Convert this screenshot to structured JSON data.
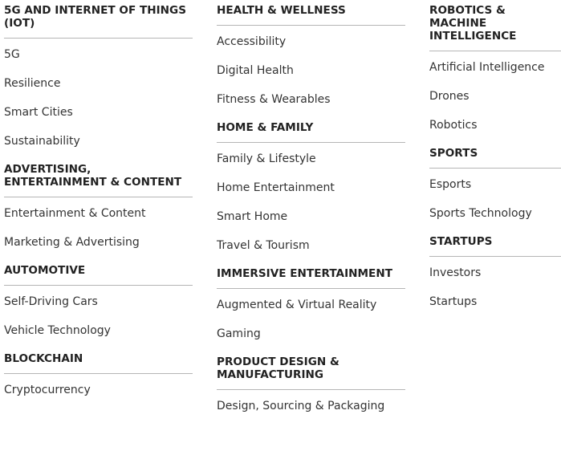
{
  "columns": [
    {
      "categories": [
        {
          "heading": "5G AND INTERNET OF THINGS (IOT)",
          "items": [
            "5G",
            "Resilience",
            "Smart Cities",
            "Sustainability"
          ]
        },
        {
          "heading": "ADVERTISING, ENTERTAINMENT & CONTENT",
          "items": [
            "Entertainment & Content",
            "Marketing & Advertising"
          ]
        },
        {
          "heading": "AUTOMOTIVE",
          "items": [
            "Self-Driving Cars",
            "Vehicle Technology"
          ]
        },
        {
          "heading": "BLOCKCHAIN",
          "items": [
            "Cryptocurrency"
          ]
        }
      ]
    },
    {
      "categories": [
        {
          "heading": "HEALTH & WELLNESS",
          "items": [
            "Accessibility",
            "Digital Health",
            "Fitness & Wearables"
          ]
        },
        {
          "heading": "HOME & FAMILY",
          "items": [
            "Family & Lifestyle",
            "Home Entertainment",
            "Smart Home",
            "Travel & Tourism"
          ]
        },
        {
          "heading": "IMMERSIVE ENTERTAINMENT",
          "items": [
            "Augmented & Virtual Reality",
            "Gaming"
          ]
        },
        {
          "heading": "PRODUCT DESIGN & MANUFACTURING",
          "items": [
            "Design, Sourcing & Packaging"
          ]
        }
      ]
    },
    {
      "categories": [
        {
          "heading": "ROBOTICS & MACHINE INTELLIGENCE",
          "items": [
            "Artificial Intelligence",
            "Drones",
            "Robotics"
          ]
        },
        {
          "heading": "SPORTS",
          "items": [
            "Esports",
            "Sports Technology"
          ]
        },
        {
          "heading": "STARTUPS",
          "items": [
            "Investors",
            "Startups"
          ]
        }
      ]
    }
  ]
}
